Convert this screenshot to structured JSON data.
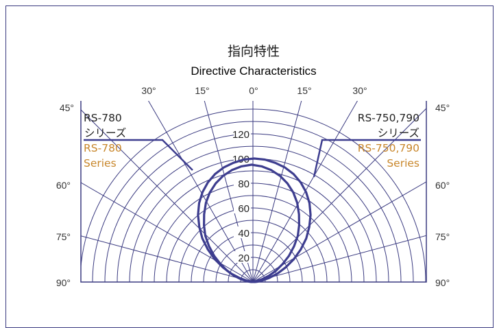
{
  "chart_data": {
    "type": "polar",
    "title": "指向特性",
    "subtitle": "Directive Characteristics",
    "angle_ticks": [
      "90°",
      "75°",
      "60°",
      "45°",
      "30°",
      "15°",
      "0°",
      "15°",
      "30°",
      "45°",
      "60°",
      "75°",
      "90°"
    ],
    "angle_values": [
      -90,
      -75,
      -60,
      -45,
      -30,
      -15,
      0,
      15,
      30,
      45,
      60,
      75,
      90
    ],
    "radial_ticks": [
      "20",
      "40",
      "60",
      "80",
      "100",
      "120"
    ],
    "radial_values": [
      20,
      40,
      60,
      80,
      100,
      120
    ],
    "rlim": [
      0,
      140
    ],
    "series": [
      {
        "name": "RS-780",
        "name_ja": "シリーズ",
        "name_en": "Series",
        "side": "left",
        "angles": [
          0,
          5,
          10,
          15,
          20,
          25,
          30,
          35,
          40,
          45,
          50,
          55,
          60,
          65,
          70,
          75,
          80,
          85,
          90
        ],
        "values": [
          95,
          94,
          92,
          89,
          85,
          80,
          74,
          67,
          60,
          53,
          45,
          37,
          29,
          22,
          15,
          9,
          4,
          1,
          0
        ]
      },
      {
        "name": "RS-750,790",
        "name_ja": "シリーズ",
        "name_en": "Series",
        "side": "right",
        "angles": [
          0,
          5,
          10,
          15,
          20,
          25,
          30,
          35,
          40,
          45,
          50,
          55,
          60,
          65,
          70,
          75,
          80,
          85,
          90
        ],
        "values": [
          100,
          99.5,
          98,
          96,
          93,
          89,
          84,
          78,
          71,
          63,
          55,
          46,
          37,
          28,
          20,
          12,
          6,
          2,
          0
        ]
      }
    ],
    "colors": {
      "curve": "#3d3d8f",
      "grid": "#3a3a80",
      "accent": "#c8862a",
      "text": "#333333"
    }
  }
}
